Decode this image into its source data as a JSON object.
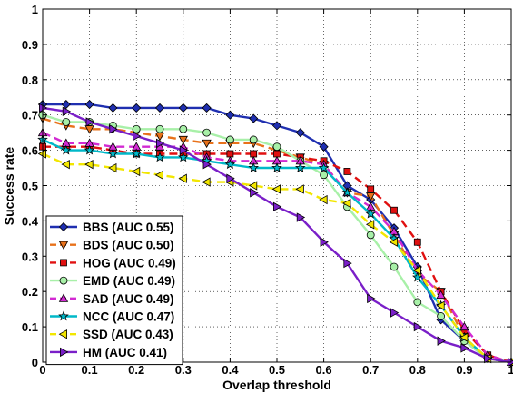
{
  "chart_data": {
    "type": "line",
    "xlabel": "Overlap threshold",
    "ylabel": "Success rate",
    "xlim": [
      0,
      1
    ],
    "ylim": [
      0,
      1
    ],
    "x_ticks": [
      "0",
      "0.1",
      "0.2",
      "0.3",
      "0.4",
      "0.5",
      "0.6",
      "0.7",
      "0.8",
      "0.9",
      "1"
    ],
    "y_ticks": [
      "0",
      "0.1",
      "0.2",
      "0.3",
      "0.4",
      "0.5",
      "0.6",
      "0.7",
      "0.8",
      "0.9",
      "1"
    ],
    "grid": true,
    "legend_position": "bottom-left",
    "series": [
      {
        "name": "BBS (AUC 0.55)",
        "color": "#1f2fb0",
        "dash": "solid",
        "marker": "diamond",
        "points": [
          [
            0,
            0.73
          ],
          [
            0.05,
            0.73
          ],
          [
            0.1,
            0.73
          ],
          [
            0.15,
            0.72
          ],
          [
            0.2,
            0.72
          ],
          [
            0.25,
            0.72
          ],
          [
            0.3,
            0.72
          ],
          [
            0.35,
            0.72
          ],
          [
            0.4,
            0.7
          ],
          [
            0.45,
            0.69
          ],
          [
            0.5,
            0.67
          ],
          [
            0.55,
            0.65
          ],
          [
            0.6,
            0.61
          ],
          [
            0.65,
            0.5
          ],
          [
            0.7,
            0.46
          ],
          [
            0.75,
            0.38
          ],
          [
            0.8,
            0.27
          ],
          [
            0.85,
            0.12
          ],
          [
            0.9,
            0.06
          ],
          [
            0.95,
            0.01
          ],
          [
            1,
            0.0
          ]
        ]
      },
      {
        "name": "BDS (AUC 0.50)",
        "color": "#e8711a",
        "dash": "dashed",
        "marker": "tri-down",
        "points": [
          [
            0,
            0.69
          ],
          [
            0.05,
            0.67
          ],
          [
            0.1,
            0.66
          ],
          [
            0.15,
            0.66
          ],
          [
            0.2,
            0.65
          ],
          [
            0.25,
            0.64
          ],
          [
            0.3,
            0.63
          ],
          [
            0.35,
            0.62
          ],
          [
            0.4,
            0.62
          ],
          [
            0.45,
            0.62
          ],
          [
            0.5,
            0.6
          ],
          [
            0.55,
            0.58
          ],
          [
            0.6,
            0.56
          ],
          [
            0.65,
            0.48
          ],
          [
            0.7,
            0.47
          ],
          [
            0.75,
            0.36
          ],
          [
            0.8,
            0.25
          ],
          [
            0.85,
            0.2
          ],
          [
            0.9,
            0.07
          ],
          [
            0.95,
            0.01
          ],
          [
            1,
            0.0
          ]
        ]
      },
      {
        "name": "HOG (AUC 0.49)",
        "color": "#e01010",
        "dash": "dashed",
        "marker": "square",
        "points": [
          [
            0,
            0.61
          ],
          [
            0.05,
            0.61
          ],
          [
            0.1,
            0.61
          ],
          [
            0.15,
            0.6
          ],
          [
            0.2,
            0.59
          ],
          [
            0.25,
            0.59
          ],
          [
            0.3,
            0.59
          ],
          [
            0.35,
            0.59
          ],
          [
            0.4,
            0.59
          ],
          [
            0.45,
            0.59
          ],
          [
            0.5,
            0.59
          ],
          [
            0.55,
            0.58
          ],
          [
            0.6,
            0.57
          ],
          [
            0.65,
            0.54
          ],
          [
            0.7,
            0.49
          ],
          [
            0.75,
            0.43
          ],
          [
            0.8,
            0.34
          ],
          [
            0.85,
            0.2
          ],
          [
            0.9,
            0.09
          ],
          [
            0.95,
            0.02
          ],
          [
            1,
            0.0
          ]
        ]
      },
      {
        "name": "EMD (AUC 0.49)",
        "color": "#a8f0a8",
        "dash": "solid",
        "marker": "circle",
        "points": [
          [
            0,
            0.7
          ],
          [
            0.05,
            0.68
          ],
          [
            0.1,
            0.68
          ],
          [
            0.15,
            0.67
          ],
          [
            0.2,
            0.66
          ],
          [
            0.25,
            0.66
          ],
          [
            0.3,
            0.66
          ],
          [
            0.35,
            0.65
          ],
          [
            0.4,
            0.63
          ],
          [
            0.45,
            0.63
          ],
          [
            0.5,
            0.61
          ],
          [
            0.55,
            0.57
          ],
          [
            0.6,
            0.53
          ],
          [
            0.65,
            0.44
          ],
          [
            0.7,
            0.36
          ],
          [
            0.75,
            0.27
          ],
          [
            0.8,
            0.17
          ],
          [
            0.85,
            0.13
          ],
          [
            0.9,
            0.06
          ],
          [
            0.95,
            0.01
          ],
          [
            1,
            0.0
          ]
        ]
      },
      {
        "name": "SAD (AUC 0.49)",
        "color": "#d22ad2",
        "dash": "dashed",
        "marker": "tri-up",
        "points": [
          [
            0,
            0.65
          ],
          [
            0.05,
            0.62
          ],
          [
            0.1,
            0.62
          ],
          [
            0.15,
            0.61
          ],
          [
            0.2,
            0.61
          ],
          [
            0.25,
            0.61
          ],
          [
            0.3,
            0.61
          ],
          [
            0.35,
            0.58
          ],
          [
            0.4,
            0.57
          ],
          [
            0.45,
            0.57
          ],
          [
            0.5,
            0.57
          ],
          [
            0.55,
            0.57
          ],
          [
            0.6,
            0.56
          ],
          [
            0.65,
            0.48
          ],
          [
            0.7,
            0.44
          ],
          [
            0.75,
            0.37
          ],
          [
            0.8,
            0.26
          ],
          [
            0.85,
            0.19
          ],
          [
            0.9,
            0.1
          ],
          [
            0.95,
            0.02
          ],
          [
            1,
            0.0
          ]
        ]
      },
      {
        "name": "NCC (AUC 0.47)",
        "color": "#00b8c8",
        "dash": "solid",
        "marker": "star",
        "points": [
          [
            0,
            0.63
          ],
          [
            0.05,
            0.6
          ],
          [
            0.1,
            0.6
          ],
          [
            0.15,
            0.59
          ],
          [
            0.2,
            0.59
          ],
          [
            0.25,
            0.58
          ],
          [
            0.3,
            0.58
          ],
          [
            0.35,
            0.57
          ],
          [
            0.4,
            0.56
          ],
          [
            0.45,
            0.55
          ],
          [
            0.5,
            0.55
          ],
          [
            0.55,
            0.55
          ],
          [
            0.6,
            0.55
          ],
          [
            0.65,
            0.48
          ],
          [
            0.7,
            0.42
          ],
          [
            0.75,
            0.35
          ],
          [
            0.8,
            0.24
          ],
          [
            0.85,
            0.16
          ],
          [
            0.9,
            0.07
          ],
          [
            0.95,
            0.01
          ],
          [
            1,
            0.0
          ]
        ]
      },
      {
        "name": "SSD (AUC 0.43)",
        "color": "#f2e600",
        "dash": "dashed",
        "marker": "tri-left",
        "points": [
          [
            0,
            0.59
          ],
          [
            0.05,
            0.56
          ],
          [
            0.1,
            0.56
          ],
          [
            0.15,
            0.55
          ],
          [
            0.2,
            0.54
          ],
          [
            0.25,
            0.53
          ],
          [
            0.3,
            0.52
          ],
          [
            0.35,
            0.51
          ],
          [
            0.4,
            0.51
          ],
          [
            0.45,
            0.5
          ],
          [
            0.5,
            0.49
          ],
          [
            0.55,
            0.49
          ],
          [
            0.6,
            0.46
          ],
          [
            0.65,
            0.45
          ],
          [
            0.7,
            0.39
          ],
          [
            0.75,
            0.34
          ],
          [
            0.8,
            0.26
          ],
          [
            0.85,
            0.16
          ],
          [
            0.9,
            0.07
          ],
          [
            0.95,
            0.01
          ],
          [
            1,
            0.0
          ]
        ]
      },
      {
        "name": "HM  (AUC 0.41)",
        "color": "#7a1fc8",
        "dash": "solid",
        "marker": "tri-right",
        "points": [
          [
            0,
            0.72
          ],
          [
            0.05,
            0.71
          ],
          [
            0.1,
            0.68
          ],
          [
            0.15,
            0.66
          ],
          [
            0.2,
            0.64
          ],
          [
            0.25,
            0.62
          ],
          [
            0.3,
            0.6
          ],
          [
            0.35,
            0.56
          ],
          [
            0.4,
            0.52
          ],
          [
            0.45,
            0.48
          ],
          [
            0.5,
            0.44
          ],
          [
            0.55,
            0.41
          ],
          [
            0.6,
            0.34
          ],
          [
            0.65,
            0.28
          ],
          [
            0.7,
            0.18
          ],
          [
            0.75,
            0.14
          ],
          [
            0.8,
            0.1
          ],
          [
            0.85,
            0.06
          ],
          [
            0.9,
            0.04
          ],
          [
            0.95,
            0.01
          ],
          [
            1,
            0.0
          ]
        ]
      }
    ]
  }
}
